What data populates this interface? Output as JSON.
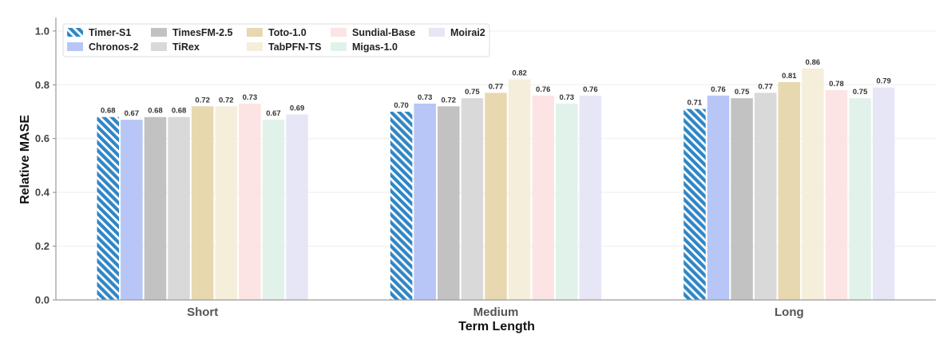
{
  "chart_data": {
    "type": "bar",
    "title": "",
    "xlabel": "Term Length",
    "ylabel": "Relative MASE",
    "ylim": [
      0,
      1.05
    ],
    "yticks": [
      "0.0",
      "0.2",
      "0.4",
      "0.6",
      "0.8",
      "1.0"
    ],
    "grid": "horizontal",
    "legend_position": "top-left",
    "categories": [
      "Short",
      "Medium",
      "Long"
    ],
    "series": [
      {
        "name": "Timer-S1",
        "color": "#2f86c6",
        "pattern": "hatched",
        "values": [
          0.68,
          0.7,
          0.71
        ],
        "labels": [
          "0.68",
          "0.70",
          "0.71"
        ]
      },
      {
        "name": "Chronos-2",
        "color": "#b7c6f7",
        "values": [
          0.67,
          0.73,
          0.76
        ],
        "labels": [
          "0.67",
          "0.73",
          "0.76"
        ]
      },
      {
        "name": "TimesFM-2.5",
        "color": "#c2c2c2",
        "values": [
          0.68,
          0.72,
          0.75
        ],
        "labels": [
          "0.68",
          "0.72",
          "0.75"
        ]
      },
      {
        "name": "TiRex",
        "color": "#d9d9d9",
        "values": [
          0.68,
          0.75,
          0.77
        ],
        "labels": [
          "0.68",
          "0.75",
          "0.77"
        ]
      },
      {
        "name": "Toto-1.0",
        "color": "#e8d8b0",
        "values": [
          0.72,
          0.77,
          0.81
        ],
        "labels": [
          "0.72",
          "0.77",
          "0.81"
        ]
      },
      {
        "name": "TabPFN-TS",
        "color": "#f4eedb",
        "values": [
          0.72,
          0.82,
          0.86
        ],
        "labels": [
          "0.72",
          "0.82",
          "0.86"
        ]
      },
      {
        "name": "Sundial-Base",
        "color": "#fde4e4",
        "values": [
          0.73,
          0.76,
          0.78
        ],
        "labels": [
          "0.73",
          "0.76",
          "0.78"
        ]
      },
      {
        "name": "Migas-1.0",
        "color": "#e1f2ea",
        "values": [
          0.67,
          0.73,
          0.75
        ],
        "labels": [
          "0.67",
          "0.73",
          "0.75"
        ]
      },
      {
        "name": "Moirai2",
        "color": "#e7e6f7",
        "values": [
          0.69,
          0.76,
          0.79
        ],
        "labels": [
          "0.69",
          "0.76",
          "0.79"
        ]
      }
    ]
  }
}
